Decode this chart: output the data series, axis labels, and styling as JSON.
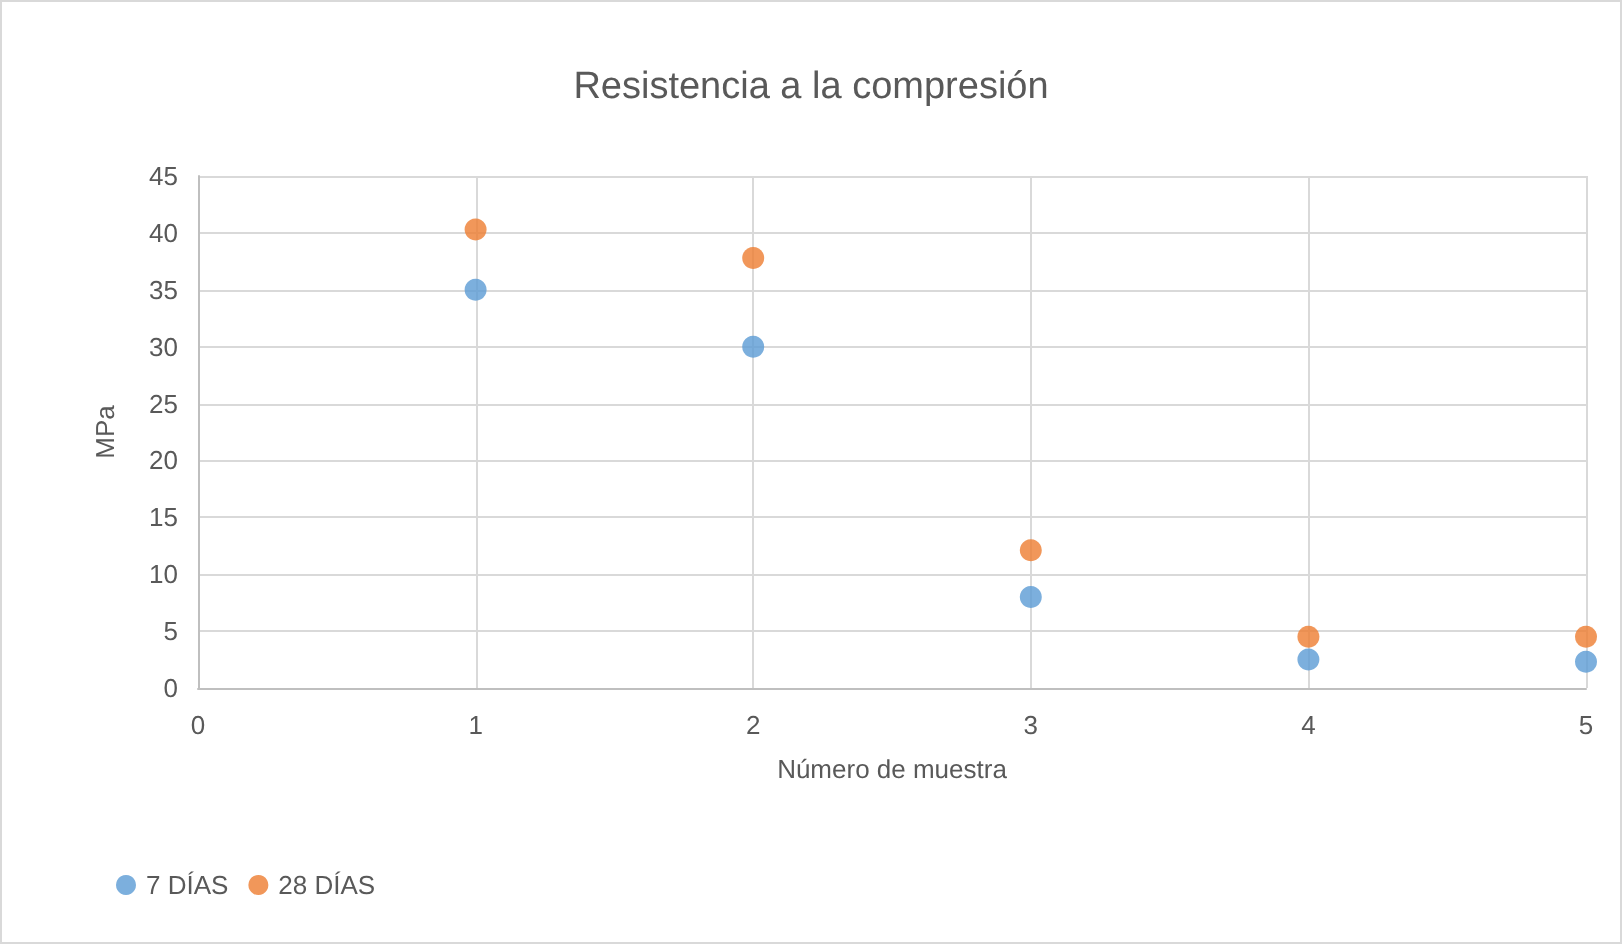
{
  "chart_data": {
    "type": "scatter",
    "title": "Resistencia a la compresión",
    "xlabel": "Número de muestra",
    "ylabel": "MPa",
    "series": [
      {
        "name": "7 DÍAS",
        "color": "#5b9bd5",
        "x": [
          1,
          2,
          3,
          4,
          5
        ],
        "values": [
          35,
          30,
          8,
          2.5,
          2.3
        ]
      },
      {
        "name": "28 DÍAS",
        "color": "#ed7d31",
        "x": [
          1,
          2,
          3,
          4,
          5
        ],
        "values": [
          40.3,
          37.8,
          12.1,
          4.5,
          4.5
        ]
      }
    ],
    "xlim": [
      0,
      5
    ],
    "xticks": [
      0,
      1,
      2,
      3,
      4,
      5
    ],
    "ylim": [
      0,
      45
    ],
    "yticks": [
      0,
      5,
      10,
      15,
      20,
      25,
      30,
      35,
      40,
      45
    ],
    "grid": true,
    "legend": "bottom left",
    "marker": "circle"
  }
}
